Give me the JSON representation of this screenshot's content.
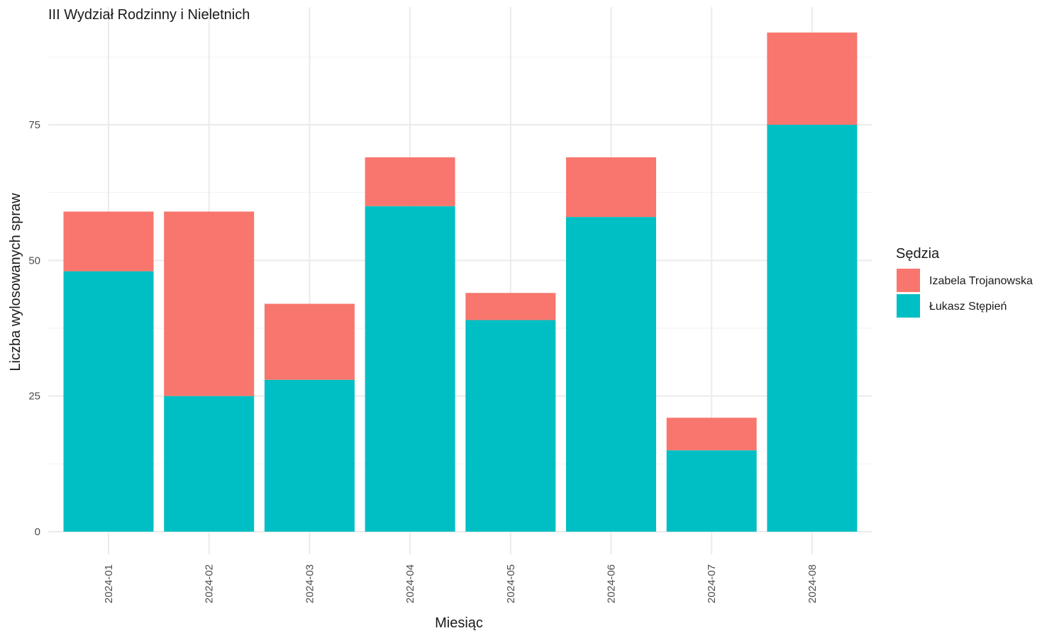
{
  "chart_data": {
    "type": "bar",
    "stacked": true,
    "title": "III Wydział Rodzinny i Nieletnich",
    "xlabel": "Miesiąc",
    "ylabel": "Liczba wylosowanych spraw",
    "categories": [
      "2024-01",
      "2024-02",
      "2024-03",
      "2024-04",
      "2024-05",
      "2024-06",
      "2024-07",
      "2024-08"
    ],
    "series": [
      {
        "name": "Łukasz Stępień",
        "color": "#00BFC4",
        "values": [
          48,
          25,
          28,
          60,
          39,
          58,
          15,
          75
        ]
      },
      {
        "name": "Izabela Trojanowska",
        "color": "#F8766D",
        "values": [
          11,
          34,
          14,
          9,
          5,
          11,
          6,
          17
        ]
      }
    ],
    "ylim": [
      0,
      92
    ],
    "yticks": [
      0,
      25,
      50,
      75
    ],
    "grid": true,
    "legend": {
      "title": "Sędzia",
      "position": "right",
      "entries": [
        "Izabela Trojanowska",
        "Łukasz Stępień"
      ]
    }
  }
}
